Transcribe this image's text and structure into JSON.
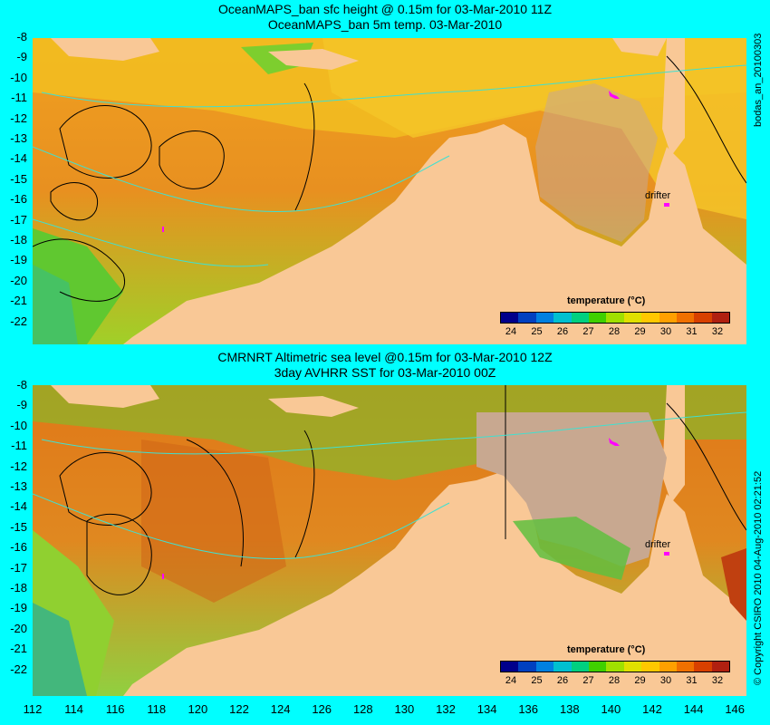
{
  "panel1": {
    "title_line1": "OceanMAPS_ban sfc height @ 0.15m for 03-Mar-2010 11Z",
    "title_line2": "OceanMAPS_ban 5m temp. 03-Mar-2010",
    "side_label": "bodas_an_20100303",
    "drifter_label": "drifter",
    "colorbar_title": "temperature (°C)"
  },
  "panel2": {
    "title_line1": "CMRNRT Altimetric sea level  @0.15m  for 03-Mar-2010 12Z",
    "title_line2": "3day AVHRR SST for 03-Mar-2010 00Z",
    "side_label": "© Copyright CSIRO 2010   04-Aug-2010 02:21:52",
    "drifter_label": "drifter",
    "colorbar_title": "temperature (°C)"
  },
  "lat_ticks": [
    "-8",
    "-9",
    "-10",
    "-11",
    "-12",
    "-13",
    "-14",
    "-15",
    "-16",
    "-17",
    "-18",
    "-19",
    "-20",
    "-21",
    "-22"
  ],
  "lon_ticks": [
    "112",
    "114",
    "116",
    "118",
    "120",
    "122",
    "124",
    "126",
    "128",
    "130",
    "132",
    "134",
    "136",
    "138",
    "140",
    "142",
    "144",
    "146"
  ],
  "colorbar": {
    "labels": [
      "24",
      "25",
      "26",
      "27",
      "28",
      "29",
      "30",
      "31",
      "32"
    ],
    "colors": [
      "#00008b",
      "#0040c0",
      "#0080e0",
      "#00c0d0",
      "#00d080",
      "#40d000",
      "#a0e000",
      "#e0e000",
      "#ffc800",
      "#ffa000",
      "#f07000",
      "#d84000",
      "#b02010"
    ]
  },
  "colors": {
    "background": "#00ffff",
    "land": "#f9c896",
    "contour_cyan": "#40e0d0",
    "contour_black": "#000000",
    "drifter": "#ff00ff",
    "warm_sea": "#e88a18",
    "hot_sea": "#c04010",
    "mid_sea": "#f0b020",
    "cool_sea": "#80d020",
    "grey_land": "#c8a890"
  }
}
